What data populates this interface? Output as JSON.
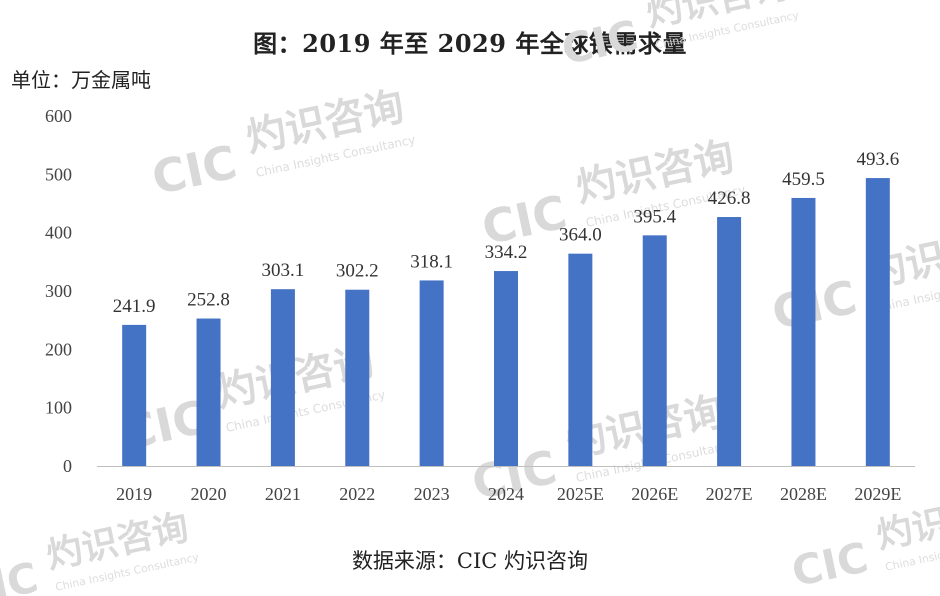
{
  "header": {
    "title": "图：2019 年至 2029 年全球镍需求量",
    "unit": "单位：万金属吨"
  },
  "footer": {
    "source": "数据来源：CIC 灼识咨询"
  },
  "watermark": {
    "logo": "CIC",
    "cn": "灼识咨询",
    "en": "China Insights Consultancy"
  },
  "colors": {
    "bar": "#4472C4",
    "axis": "#bfbfbf",
    "watermark": "#d9d9d9"
  },
  "chart_data": {
    "type": "bar",
    "title": "图：2019 年至 2029 年全球镍需求量",
    "ylabel": "单位：万金属吨",
    "xlabel": "",
    "categories": [
      "2019",
      "2020",
      "2021",
      "2022",
      "2023",
      "2024",
      "2025E",
      "2026E",
      "2027E",
      "2028E",
      "2029E"
    ],
    "values": [
      241.9,
      252.8,
      303.1,
      302.2,
      318.1,
      334.2,
      364.0,
      395.4,
      426.8,
      459.5,
      493.6
    ],
    "labels": [
      "241.9",
      "252.8",
      "303.1",
      "302.2",
      "318.1",
      "334.2",
      "364.0",
      "395.4",
      "426.8",
      "459.5",
      "493.6"
    ],
    "ylim": [
      0,
      600
    ],
    "yticks": [
      0,
      100,
      200,
      300,
      400,
      500,
      600
    ],
    "grid": false,
    "legend": "none"
  }
}
